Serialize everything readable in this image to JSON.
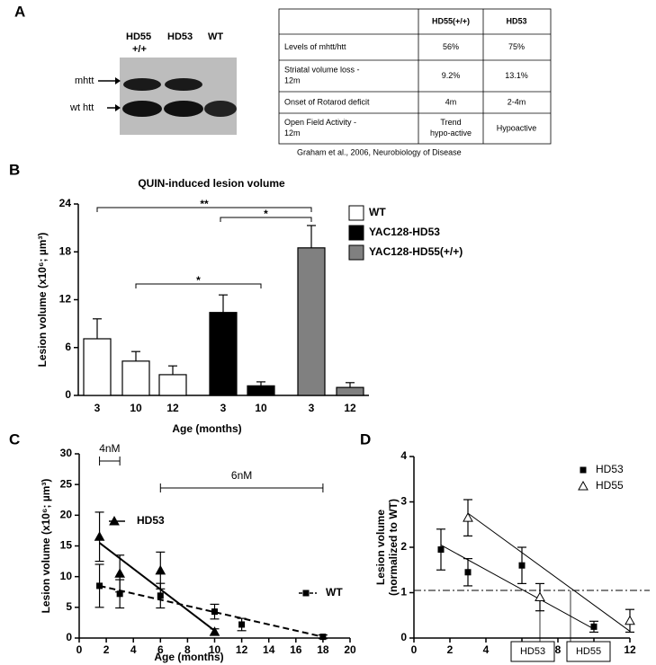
{
  "panel_a": {
    "label": "A",
    "blot": {
      "lanes": [
        "HD55",
        "HD53",
        "WT"
      ],
      "lane_sublabel": "+/+",
      "bands": [
        "mhtt",
        "wt htt"
      ]
    },
    "table": {
      "columns": [
        "HD55(+/+)",
        "HD53"
      ],
      "rows": [
        {
          "label": "Levels of mhtt/htt",
          "cells": [
            "56%",
            "75%"
          ]
        },
        {
          "label": "Striatal volume loss - 12m",
          "cells": [
            "9.2%",
            "13.1%"
          ]
        },
        {
          "label": "Onset of Rotarod deficit",
          "cells": [
            "4m",
            "2-4m"
          ]
        },
        {
          "label": "Open Field Activity - 12m",
          "cells": [
            "Trend hypo-active",
            "Hypoactive"
          ]
        }
      ]
    },
    "citation": "Graham et al., 2006, Neurobiology of Disease"
  },
  "chart_data": [
    {
      "panel": "B",
      "type": "bar",
      "title": "QUIN-induced lesion volume",
      "ylabel": "Lesion volume (x10⁶; µm³)",
      "xlabel": "Age (months)",
      "ylim": [
        0,
        24
      ],
      "yticks": [
        0,
        6,
        12,
        18,
        24
      ],
      "legend": "upper right",
      "series": [
        {
          "name": "WT",
          "color": "#ffffff",
          "categories": [
            "3",
            "10",
            "12"
          ],
          "values": [
            7.1,
            4.3,
            2.6
          ],
          "errors": [
            2.5,
            1.2,
            1.1
          ]
        },
        {
          "name": "YAC128-HD53",
          "color": "#000000",
          "categories": [
            "3",
            "10"
          ],
          "values": [
            10.4,
            1.2
          ],
          "errors": [
            2.2,
            0.5
          ]
        },
        {
          "name": "YAC128-HD55(+/+)",
          "color": "#808080",
          "categories": [
            "3",
            "12"
          ],
          "values": [
            18.5,
            1.0
          ],
          "errors": [
            2.8,
            0.6
          ]
        }
      ],
      "annotations": [
        "**",
        "*",
        "*"
      ]
    },
    {
      "panel": "C",
      "type": "scatter",
      "ylabel": "Lesion volume (x10⁶; µm³)",
      "xlabel": "Age (months)",
      "xlim": [
        0,
        20
      ],
      "xticks": [
        0,
        2,
        4,
        6,
        8,
        10,
        12,
        14,
        16,
        18,
        20
      ],
      "ylim": [
        0,
        30
      ],
      "yticks": [
        0,
        5,
        10,
        15,
        20,
        25,
        30
      ],
      "legend": "inline",
      "series": [
        {
          "name": "HD53",
          "color": "#000000",
          "marker": "triangle",
          "x": [
            1.5,
            3,
            6,
            10
          ],
          "values": [
            16.5,
            10.5,
            11,
            1.0
          ],
          "errors": [
            4,
            3,
            3,
            0.5
          ],
          "fit": {
            "x": [
              1.5,
              10
            ],
            "y": [
              15.5,
              1.2
            ]
          },
          "dash": false
        },
        {
          "name": "WT",
          "color": "#000000",
          "marker": "square",
          "x": [
            1.5,
            3,
            6,
            10,
            12,
            18
          ],
          "values": [
            8.5,
            7.2,
            6.9,
            4.3,
            2.2,
            0.2
          ],
          "errors": [
            3.5,
            2.3,
            2,
            1.2,
            1,
            0.3
          ],
          "fit": {
            "x": [
              1.5,
              18
            ],
            "y": [
              8.5,
              0.2
            ]
          },
          "dash": true
        }
      ],
      "annotations": [
        {
          "text": "4nM",
          "x": [
            1.5,
            3
          ]
        },
        {
          "text": "6nM",
          "x": [
            6,
            18
          ]
        }
      ]
    },
    {
      "panel": "D",
      "type": "scatter",
      "ylabel": [
        "Lesion volume",
        "(normalized to WT)"
      ],
      "xlim": [
        0,
        12
      ],
      "xticks": [
        0,
        2,
        4,
        6,
        8,
        10,
        12
      ],
      "ylim": [
        0,
        4
      ],
      "yticks": [
        0,
        1,
        2,
        3,
        4
      ],
      "legend": "upper right",
      "refline": 1.05,
      "series": [
        {
          "name": "HD53",
          "color": "#000000",
          "marker": "square",
          "x": [
            1.5,
            3,
            6,
            10
          ],
          "values": [
            1.95,
            1.45,
            1.6,
            0.25
          ],
          "errors": [
            0.45,
            0.3,
            0.4,
            0.12
          ],
          "fit": {
            "x": [
              1.5,
              10
            ],
            "y": [
              2.05,
              0.2
            ]
          },
          "intercept": 7
        },
        {
          "name": "HD55",
          "color": "#000000",
          "marker": "open-triangle",
          "x": [
            3,
            7,
            12
          ],
          "values": [
            2.65,
            0.9,
            0.38
          ],
          "errors": [
            0.4,
            0.3,
            0.25
          ],
          "fit": {
            "x": [
              3,
              12
            ],
            "y": [
              2.75,
              0.15
            ]
          },
          "intercept": 8.7
        }
      ]
    }
  ]
}
